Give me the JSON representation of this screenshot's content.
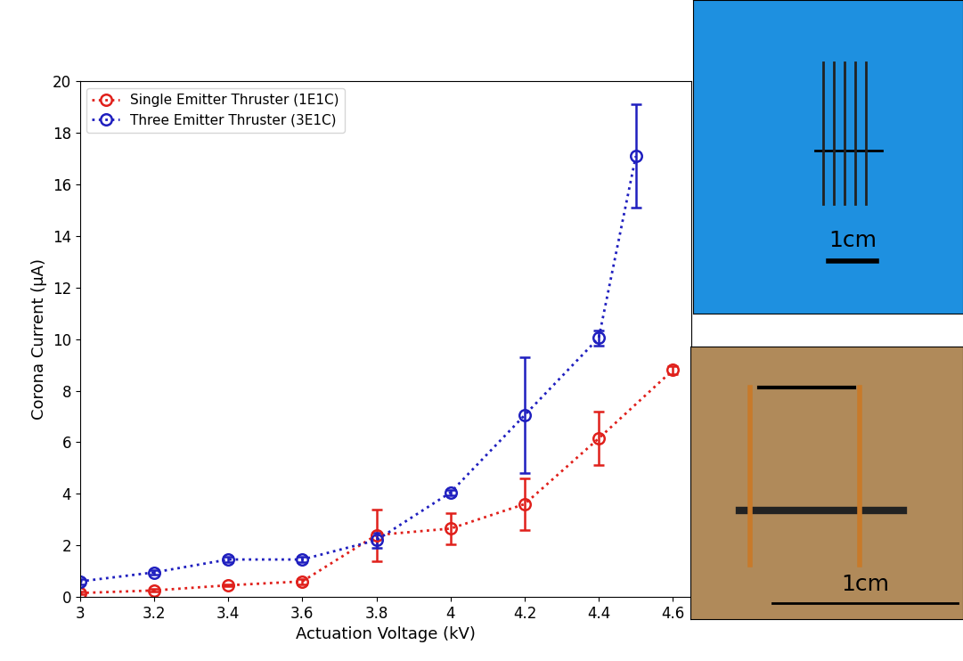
{
  "chart_data": {
    "type": "line",
    "x_label": "Actuation Voltage (kV)",
    "y_label": "Corona Current (μA)",
    "series": [
      {
        "name": "Single Emitter Thruster (1E1C)",
        "color": "#e0201b",
        "marker": "o",
        "line_style": "dotted",
        "x": [
          3,
          3.2,
          3.4,
          3.6,
          3.8,
          4,
          4.2,
          4.4,
          4.6
        ],
        "values": [
          0.15,
          0.25,
          0.45,
          0.6,
          2.4,
          2.65,
          3.6,
          6.15,
          8.8
        ],
        "errors": [
          0.05,
          0.05,
          0.05,
          0.1,
          1.0,
          0.6,
          1.0,
          1.05,
          0.15
        ]
      },
      {
        "name": "Three Emitter Thruster (3E1C)",
        "color": "#1f1fbf",
        "marker": "o",
        "line_style": "dotted",
        "x": [
          3,
          3.2,
          3.4,
          3.6,
          3.8,
          4,
          4.2,
          4.4,
          4.5
        ],
        "values": [
          0.6,
          0.95,
          1.45,
          1.45,
          2.2,
          4.05,
          7.05,
          10.05,
          17.1
        ],
        "errors": [
          0.1,
          0.1,
          0.1,
          0.1,
          0.3,
          0.1,
          2.25,
          0.3,
          2.0
        ]
      }
    ],
    "xlim": [
      3,
      4.65
    ],
    "xticks": [
      3,
      3.2,
      3.4,
      3.6,
      3.8,
      4,
      4.2,
      4.4,
      4.6
    ],
    "ylim": [
      0,
      20
    ],
    "yticks": [
      0,
      2,
      4,
      6,
      8,
      10,
      12,
      14,
      16,
      18,
      20
    ],
    "legend": "upper left",
    "grid": false,
    "annotations": [
      "1cm",
      "1cm"
    ]
  }
}
